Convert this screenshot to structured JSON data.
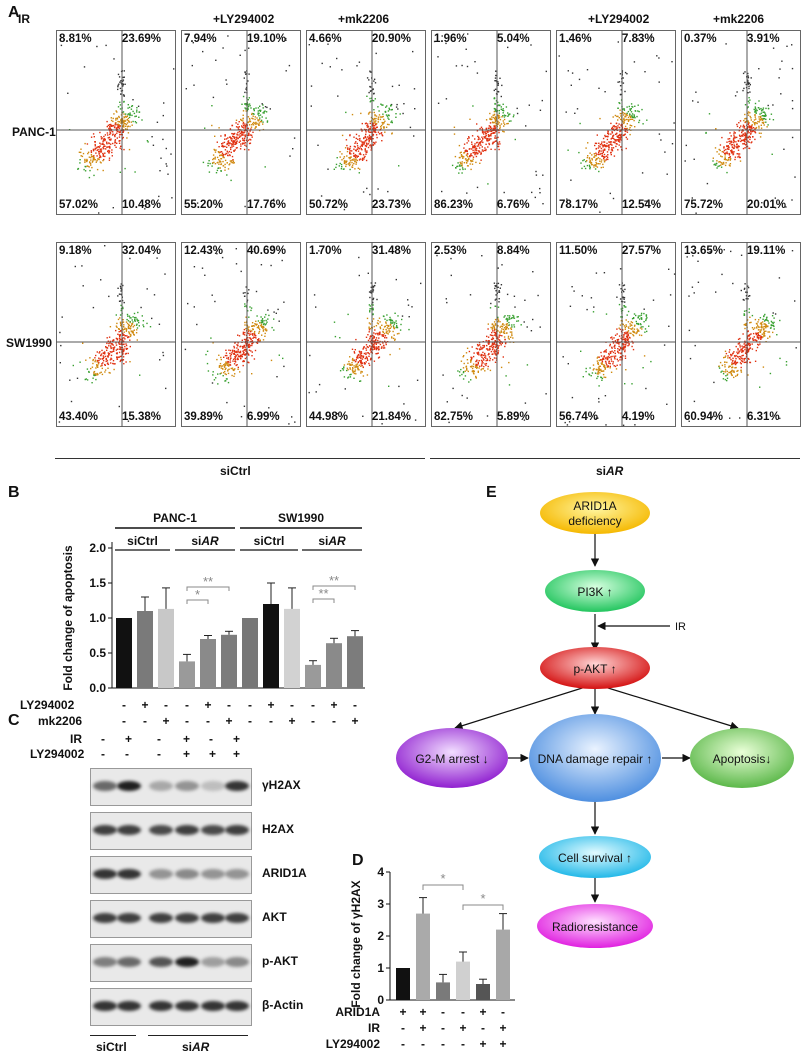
{
  "panel_labels": {
    "a": "A",
    "b": "B",
    "c": "C",
    "d": "D",
    "e": "E"
  },
  "panel_a": {
    "col_headers": [
      "IR",
      "+LY294002",
      "+mk2206",
      "",
      "+LY294002",
      "+mk2206"
    ],
    "rows": [
      {
        "label": "PANC-1",
        "plots": [
          {
            "ul": "8.81%",
            "ur": "23.69%",
            "ll": "57.02%",
            "lr": "10.48%"
          },
          {
            "ul": "7.94%",
            "ur": "19.10%",
            "ll": "55.20%",
            "lr": "17.76%"
          },
          {
            "ul": "4.66%",
            "ur": "20.90%",
            "ll": "50.72%",
            "lr": "23.73%"
          },
          {
            "ul": "1.96%",
            "ur": "5.04%",
            "ll": "86.23%",
            "lr": "6.76%"
          },
          {
            "ul": "1.46%",
            "ur": "7.83%",
            "ll": "78.17%",
            "lr": "12.54%"
          },
          {
            "ul": "0.37%",
            "ur": "3.91%",
            "ll": "75.72%",
            "lr": "20.01%"
          }
        ]
      },
      {
        "label": "SW1990",
        "plots": [
          {
            "ul": "9.18%",
            "ur": "32.04%",
            "ll": "43.40%",
            "lr": "15.38%"
          },
          {
            "ul": "12.43%",
            "ur": "40.69%",
            "ll": "39.89%",
            "lr": "6.99%"
          },
          {
            "ul": "1.70%",
            "ur": "31.48%",
            "ll": "44.98%",
            "lr": "21.84%"
          },
          {
            "ul": "2.53%",
            "ur": "8.84%",
            "ll": "82.75%",
            "lr": "5.89%"
          },
          {
            "ul": "11.50%",
            "ur": "27.57%",
            "ll": "56.74%",
            "lr": "4.19%"
          },
          {
            "ul": "13.65%",
            "ur": "19.11%",
            "ll": "60.94%",
            "lr": "6.31%"
          }
        ]
      }
    ],
    "group_sictrl": "siCtrl",
    "group_siar_prefix": "si",
    "group_siar_italic": "AR"
  },
  "panel_b": {
    "ylabel": "Fold change of apoptosis",
    "yticks": [
      "0.0",
      "0.5",
      "1.0",
      "1.5",
      "2.0"
    ],
    "cell_lines": [
      "PANC-1",
      "SW1990"
    ],
    "sictrl": "siCtrl",
    "siar_prefix": "si",
    "siar_italic": "AR",
    "rows": {
      "ly": "LY294002",
      "mk": "mk2206"
    },
    "ly_signs": [
      "-",
      "+",
      "-",
      "-",
      "+",
      "-",
      "-",
      "+",
      "-",
      "-",
      "+",
      "-"
    ],
    "mk_signs": [
      "-",
      "-",
      "+",
      "-",
      "-",
      "+",
      "-",
      "-",
      "+",
      "-",
      "-",
      "+"
    ],
    "sig_single": "*",
    "sig_double": "**"
  },
  "panel_c": {
    "ir_label": "IR",
    "ly_label": "LY294002",
    "ir_signs": [
      "-",
      "+",
      "-",
      "+",
      "-",
      "+"
    ],
    "ly_signs": [
      "-",
      "-",
      "-",
      "+",
      "+",
      "+"
    ],
    "bands": [
      "γH2AX",
      "H2AX",
      "ARID1A",
      "AKT",
      "p-AKT",
      "β-Actin"
    ],
    "sictrl": "siCtrl",
    "siar_prefix": "si",
    "siar_italic": "AR"
  },
  "panel_d": {
    "ylabel": "Fold change of γH2AX",
    "yticks": [
      "0",
      "1",
      "2",
      "3",
      "4"
    ],
    "rows": {
      "arid": "ARID1A",
      "ir": "IR",
      "ly": "LY294002"
    },
    "arid_signs": [
      "+",
      "+",
      "-",
      "-",
      "+",
      "-"
    ],
    "ir_signs": [
      "-",
      "+",
      "-",
      "+",
      "-",
      "+"
    ],
    "ly_signs": [
      "-",
      "-",
      "-",
      "-",
      "+",
      "+"
    ],
    "sig": "*"
  },
  "panel_e": {
    "nodes": {
      "arid": [
        "ARID1A",
        "deficiency"
      ],
      "pi3k": "PI3K ↑",
      "ir": "IR",
      "pakt": "p-AKT ↑",
      "g2m": "G2-M arrest ↓",
      "dna": "DNA damage repair ↑",
      "apop": "Apoptosis↓",
      "surv": "Cell survival ↑",
      "radio": "Radioresistance"
    }
  },
  "chart_data": [
    {
      "type": "bar",
      "title": "",
      "ylabel": "Fold change of apoptosis",
      "ylim": [
        0,
        2.0
      ],
      "groups": [
        "PANC-1 siCtrl",
        "PANC-1 siAR",
        "SW1990 siCtrl",
        "SW1990 siAR"
      ],
      "categories": [
        "PANC-1 siCtrl Ctrl",
        "PANC-1 siCtrl LY294002",
        "PANC-1 siCtrl mk2206",
        "PANC-1 siAR Ctrl",
        "PANC-1 siAR LY294002",
        "PANC-1 siAR mk2206",
        "SW1990 siCtrl Ctrl",
        "SW1990 siCtrl LY294002",
        "SW1990 siCtrl mk2206",
        "SW1990 siAR Ctrl",
        "SW1990 siAR LY294002",
        "SW1990 siAR mk2206"
      ],
      "values": [
        1.0,
        1.1,
        1.13,
        0.38,
        0.7,
        0.76,
        1.0,
        1.2,
        1.13,
        0.33,
        0.64,
        0.74
      ],
      "errors": [
        0,
        0.2,
        0.3,
        0.1,
        0.05,
        0.05,
        0,
        0.3,
        0.3,
        0.06,
        0.07,
        0.08
      ],
      "colors": [
        "#111111",
        "#7a7a7a",
        "#c8c8c8",
        "#9a9a9a",
        "#8a8a8a",
        "#7c7c7c",
        "#777777",
        "#111111",
        "#d2d2d2",
        "#9a9a9a",
        "#8a8a8a",
        "#7c7c7c"
      ]
    },
    {
      "type": "bar",
      "title": "",
      "ylabel": "Fold change of γH2AX",
      "ylim": [
        0,
        4
      ],
      "categories": [
        "ARID1A+ IR-",
        "ARID1A+ IR+",
        "ARID1A- IR-",
        "ARID1A- IR+",
        "ARID1A+ IR- LY",
        "ARID1A- IR+ LY"
      ],
      "values": [
        1.0,
        2.7,
        0.55,
        1.2,
        0.5,
        2.2
      ],
      "errors": [
        0,
        0.5,
        0.25,
        0.3,
        0.15,
        0.5
      ],
      "colors": [
        "#111111",
        "#aaaaaa",
        "#7a7a7a",
        "#d0d0d0",
        "#555555",
        "#a8a8a8"
      ]
    }
  ]
}
